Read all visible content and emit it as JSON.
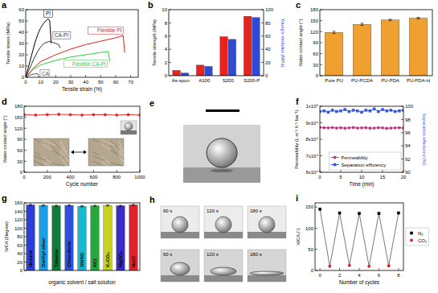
{
  "chart_data": [
    {
      "type": "line",
      "title": "a",
      "x_label": "Tensile strain (%)",
      "y_label": "Tensile stress (MPa)",
      "xlim": [
        0,
        75
      ],
      "xticks": [
        0,
        10,
        20,
        30,
        40,
        50,
        60,
        70
      ],
      "ylim": [
        0,
        60
      ],
      "yticks": [
        0,
        10,
        20,
        30,
        40,
        50,
        60
      ],
      "series": [
        {
          "name": "PI",
          "color": "#000000",
          "x": [
            0,
            2,
            4,
            6,
            8,
            10,
            12,
            14,
            15,
            16,
            17
          ],
          "values": [
            0,
            10,
            20,
            30,
            38,
            44,
            48,
            51,
            52,
            50,
            30
          ]
        },
        {
          "name": "CA-PI",
          "color": "#333333",
          "x": [
            0,
            2,
            4,
            6,
            8,
            10,
            12,
            14,
            16,
            18,
            20,
            22,
            23
          ],
          "values": [
            0,
            6,
            12,
            18,
            23,
            27,
            30,
            31,
            32,
            31,
            30,
            29,
            26
          ]
        },
        {
          "name": "Flexible PI",
          "color": "#e02020",
          "x": [
            0,
            5,
            10,
            20,
            30,
            40,
            50,
            60,
            65,
            66
          ],
          "values": [
            0,
            8,
            14,
            20,
            25,
            29,
            32,
            35,
            37,
            22
          ]
        },
        {
          "name": "Flexible CA-PI",
          "color": "#2ecc40",
          "x": [
            0,
            5,
            10,
            20,
            30,
            40,
            50,
            55,
            56
          ],
          "values": [
            0,
            7,
            11,
            15,
            18,
            20,
            22,
            23,
            14
          ]
        },
        {
          "name": "CA",
          "color": "#555555",
          "x": [
            0,
            2,
            4,
            6,
            8,
            9
          ],
          "values": [
            0,
            1.5,
            2.5,
            3,
            3.2,
            0
          ]
        }
      ]
    },
    {
      "type": "bar",
      "title": "b",
      "y_label": "Tensile strength (MPa)",
      "y2_label": "Young's modulus (MPa)",
      "categories": [
        "As-spun",
        "A100",
        "S200",
        "S200-P"
      ],
      "ylim": [
        0,
        10
      ],
      "yticks": [
        0,
        2,
        4,
        6,
        8,
        10
      ],
      "y2lim": [
        0,
        100
      ],
      "y2ticks": [
        0,
        20,
        40,
        60,
        80,
        100
      ],
      "series": [
        {
          "color": "#e8221f",
          "values": [
            0.8,
            1.6,
            5.9,
            9.0
          ]
        },
        {
          "color": "#2f4bd6",
          "axis": "y2",
          "values": [
            4,
            14,
            55,
            88
          ]
        }
      ]
    },
    {
      "type": "bar",
      "title": "c",
      "y_label": "Water contact angle (°)",
      "categories": [
        "Pure PU",
        "PU-PCDA",
        "PU-PDA",
        "PU-PDA-H"
      ],
      "values": [
        118,
        140,
        152,
        157
      ],
      "errors": [
        3,
        3,
        2,
        2
      ],
      "color": "#f0a030",
      "ylim": [
        0,
        180
      ],
      "yticks": [
        0,
        30,
        60,
        90,
        120,
        150,
        180
      ]
    },
    {
      "type": "line",
      "title": "d",
      "x_label": "Cycle number",
      "y_label": "Water contact angle (°)",
      "x": [
        0,
        100,
        200,
        300,
        400,
        500,
        600,
        700,
        800,
        900,
        1000
      ],
      "values": [
        157,
        156,
        157,
        158,
        157,
        156,
        157,
        157,
        156,
        157,
        156
      ],
      "color": "#e0302a",
      "marker": "circle",
      "xlim": [
        0,
        1000
      ],
      "xticks": [
        0,
        200,
        400,
        600,
        800,
        1000
      ],
      "ylim": [
        0,
        180
      ],
      "yticks": [
        0,
        30,
        60,
        90,
        120,
        150,
        180
      ]
    },
    {
      "type": "line",
      "title": "f",
      "x_label": "Time (min)",
      "y_label": "Permeability (L m⁻² h⁻¹ bar⁻¹)",
      "y2_label": "Separation efficiency (%)",
      "x": [
        0,
        1,
        2,
        3,
        4,
        5,
        6,
        7,
        8,
        9,
        10,
        11,
        12,
        13,
        14,
        15,
        16,
        17,
        18,
        19,
        20
      ],
      "xlim": [
        0,
        20
      ],
      "xticks": [
        0,
        5,
        10,
        15,
        20
      ],
      "ylim": [
        60000,
        100000
      ],
      "yticks": [
        {
          "value": 60000,
          "label": "6x10⁴"
        },
        {
          "value": 70000,
          "label": "7x10⁴"
        },
        {
          "value": 80000,
          "label": "8x10⁴"
        },
        {
          "value": 90000,
          "label": "9x10⁴"
        },
        {
          "value": 100000,
          "label": "1x10⁵"
        }
      ],
      "y2lim": [
        90,
        100
      ],
      "y2ticks": [
        90,
        92,
        94,
        96,
        98,
        100
      ],
      "legend": "lower right",
      "series": [
        {
          "name": "Permeability",
          "color": "#c0388a",
          "marker": "circle",
          "values": [
            87200,
            87000,
            86900,
            87100,
            86800,
            87000,
            86700,
            86900,
            87100,
            86800,
            86900,
            87000,
            86700,
            86800,
            87000,
            86900,
            86600,
            86800,
            86900,
            87000,
            86800
          ]
        },
        {
          "name": "Separation efficiency",
          "color": "#3a5bd8",
          "marker": "square",
          "axis": "y2",
          "values": [
            99.2,
            99.3,
            99.1,
            99.4,
            99.2,
            99.3,
            99.5,
            99.2,
            99.4,
            99.3,
            99.1,
            99.4,
            99.3,
            99.6,
            99.2,
            99.5,
            99.3,
            99.4,
            99.2,
            99.3,
            99.4
          ]
        }
      ]
    },
    {
      "type": "bar",
      "title": "g",
      "y_label": "WCA (Degree)",
      "x_label": "organic solvent / salt solution",
      "categories": [
        "Hexane",
        "Diethyl ether",
        "Toluene",
        "Chloroform",
        "DMSO",
        "KCl",
        "K₂CO₃",
        "MgSO₄",
        "NaCl"
      ],
      "values": [
        155,
        154,
        153,
        154,
        152,
        153,
        154,
        153,
        155
      ],
      "errors": [
        1.5,
        1.5,
        1.5,
        1.5,
        1.5,
        1.5,
        1.5,
        1.5,
        1.5
      ],
      "colors": [
        "#2b3fd6",
        "#1aa0e8",
        "#0f7d3a",
        "#3050e0",
        "#18b8d0",
        "#23a83a",
        "#c8d21e",
        "#3a2cc8",
        "#e0202a"
      ],
      "ylim": [
        0,
        160
      ],
      "yticks": [
        0,
        20,
        40,
        60,
        80,
        100,
        120,
        140,
        160
      ]
    },
    {
      "type": "line",
      "title": "i",
      "x_label": "Number of cycles",
      "y_label": "WCA (°)",
      "xlim": [
        -0.5,
        8.5
      ],
      "xticks": [
        0,
        2,
        4,
        6,
        8
      ],
      "ylim": [
        0,
        160
      ],
      "yticks": [
        0,
        50,
        100,
        150
      ],
      "line_style": "solid",
      "legend": "right",
      "series": [
        {
          "name": "N₂",
          "color": "#000000",
          "marker": "square",
          "line_style": "none",
          "x": [
            0,
            2,
            4,
            6,
            8
          ],
          "values": [
            145,
            136,
            135,
            135,
            136
          ]
        },
        {
          "name": "CO₂",
          "color": "#e02020",
          "marker": "circle",
          "line_style": "none",
          "x": [
            1,
            3,
            5,
            7
          ],
          "values": [
            10,
            12,
            10,
            11
          ]
        }
      ]
    }
  ],
  "images": [
    {
      "title": "e"
    },
    {
      "title": "h",
      "captions": [
        "60 s",
        "120 s",
        "180 s",
        "60 s",
        "120 s",
        "180 s"
      ]
    }
  ]
}
